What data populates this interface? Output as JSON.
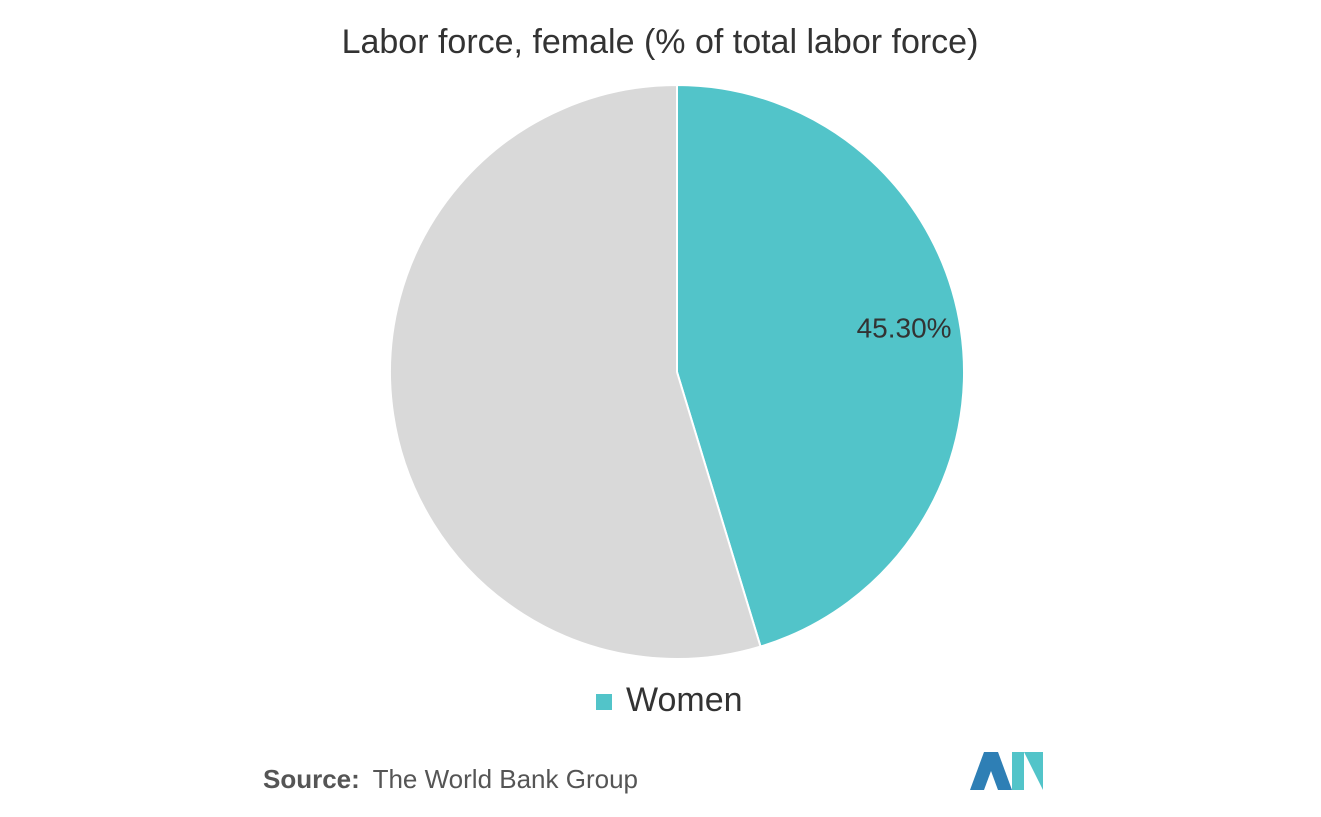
{
  "chart_data": {
    "type": "pie",
    "title": "Labor force, female (% of total labor force)",
    "categories": [
      "Women",
      null
    ],
    "values": [
      45.3,
      54.7
    ],
    "value_labels": [
      "45.30%",
      null
    ],
    "colors": [
      "#52c4c9",
      "#d9d9d9"
    ],
    "legend": "bottom"
  },
  "source": {
    "label": "Source:",
    "text": "The World Bank Group"
  }
}
